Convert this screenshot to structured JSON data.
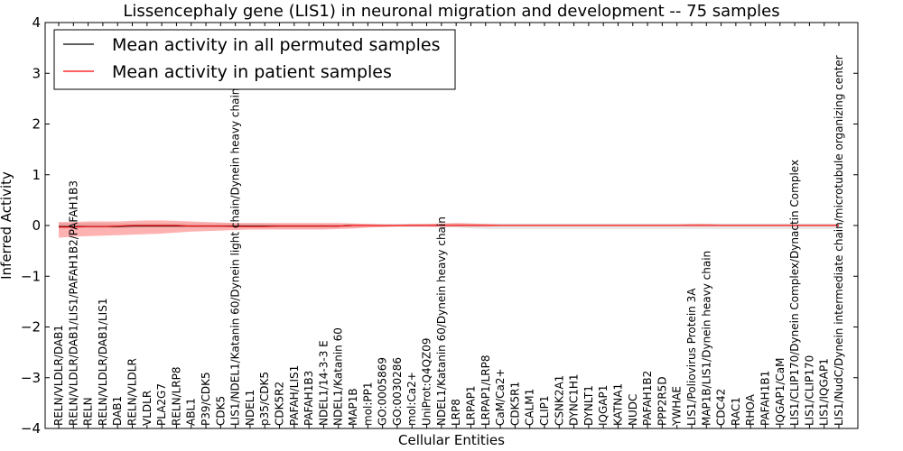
{
  "chart_data": {
    "type": "line",
    "title": "Lissencephaly gene (LIS1) in neuronal migration and development -- 75 samples",
    "xlabel": "Cellular Entities",
    "ylabel": "Inferred Activity",
    "ylim": [
      -4,
      4
    ],
    "yticks": [
      -4,
      -3,
      -2,
      -1,
      0,
      1,
      2,
      3,
      4
    ],
    "ytick_labels": [
      "−4",
      "−3",
      "−2",
      "−1",
      "0",
      "1",
      "2",
      "3",
      "4"
    ],
    "legend_position": "top-left",
    "categories": [
      "RELN/VLDLR/DAB1",
      "RELN/VLDLR/DAB1/LIS1/PAFAH1B2/PAFAH1B3",
      "RELN",
      "RELN/VLDLR/DAB1/LIS1",
      "DAB1",
      "RELN/VLDLR",
      "VLDLR",
      "PLA2G7",
      "RELN/LRP8",
      "ABL1",
      "P39/CDK5",
      "CDK5",
      "LIS1/NDEL1/Katanin 60/Dynein light chain/Dynein heavy chain",
      "NDEL1",
      "p35/CDK5",
      "CDK5R2",
      "PAFAH/LIS1",
      "PAFAH1B3",
      "NDEL1/14-3-3 E",
      "NDEL1/Katanin 60",
      "MAP1B",
      "mol:PP1",
      "GO:0005869",
      "GO:0030286",
      "mol:Ca2+",
      "UniProt:Q4QZ09",
      "NDEL1/Katanin 60/Dynein heavy chain",
      "LRP8",
      "LRPAP1",
      "LRPAP1/LRP8",
      "CaM/Ca2+",
      "CDK5R1",
      "CALM1",
      "CLIP1",
      "CSNK2A1",
      "DYNC1H1",
      "DYNLT1",
      "IQGAP1",
      "KATNA1",
      "NUDC",
      "PAFAH1B2",
      "PPP2R5D",
      "YWHAE",
      "LIS1/Poliovirus Protein 3A",
      "MAP1B/LIS1/Dynein heavy chain",
      "CDC42",
      "RAC1",
      "RHOA",
      "PAFAH1B1",
      "IQGAP1/CaM",
      "LIS1/CLIP170/Dynein Complex/Dynactin Complex",
      "LIS1/CLIP170",
      "LIS1/IQGAP1",
      "LIS1/NudC/Dynein intermediate chain/microtubule organizing center"
    ],
    "series": [
      {
        "name": "Mean activity in all permuted samples",
        "color": "#000000",
        "values": [
          -0.02,
          -0.02,
          -0.02,
          -0.02,
          -0.02,
          -0.01,
          -0.01,
          -0.01,
          -0.01,
          -0.01,
          -0.01,
          -0.01,
          -0.01,
          -0.01,
          -0.01,
          -0.01,
          -0.01,
          -0.01,
          -0.01,
          -0.01,
          0,
          0,
          0,
          0,
          0,
          0,
          0,
          0,
          0,
          0,
          0,
          0,
          0,
          0,
          0,
          0,
          0,
          0,
          0,
          0,
          0,
          0,
          0,
          0,
          0,
          0,
          0,
          0,
          0,
          0,
          0,
          0,
          0,
          0
        ],
        "band_lower": [
          -0.06,
          -0.05,
          -0.05,
          -0.05,
          -0.05,
          -0.05,
          -0.04,
          -0.04,
          -0.04,
          -0.04,
          -0.04,
          -0.04,
          -0.04,
          -0.04,
          -0.04,
          -0.04,
          -0.04,
          -0.04,
          -0.04,
          -0.04,
          -0.03,
          -0.03,
          -0.03,
          -0.03,
          -0.03,
          -0.03,
          -0.04,
          -0.04,
          -0.06,
          -0.07,
          -0.07,
          -0.07,
          -0.07,
          -0.07,
          -0.07,
          -0.07,
          -0.07,
          -0.07,
          -0.07,
          -0.07,
          -0.07,
          -0.07,
          -0.07,
          -0.07,
          -0.07,
          -0.07,
          -0.07,
          -0.07,
          -0.07,
          -0.07,
          -0.07,
          -0.07,
          -0.07,
          -0.07
        ],
        "band_upper": [
          0.05,
          0.05,
          0.05,
          0.05,
          0.04,
          0.04,
          0.04,
          0.04,
          0.04,
          0.04,
          0.04,
          0.04,
          0.04,
          0.04,
          0.04,
          0.03,
          0.03,
          0.03,
          0.03,
          0.03,
          0.03,
          0.03,
          0.03,
          0.03,
          0.03,
          0.03,
          0.04,
          0.04,
          0.04,
          0.04,
          0.04,
          0.04,
          0.04,
          0.04,
          0.04,
          0.04,
          0.04,
          0.04,
          0.04,
          0.04,
          0.04,
          0.04,
          0.04,
          0.04,
          0.04,
          0.04,
          0.04,
          0.04,
          0.04,
          0.04,
          0.04,
          0.04,
          0.04,
          0.04
        ]
      },
      {
        "name": "Mean activity in patient samples",
        "color": "#ff0000",
        "values": [
          -0.03,
          -0.03,
          -0.02,
          -0.02,
          -0.01,
          0,
          0,
          0,
          0,
          -0.01,
          -0.01,
          -0.01,
          -0.02,
          -0.02,
          -0.02,
          -0.01,
          -0.01,
          -0.01,
          -0.01,
          -0.01,
          0,
          0,
          0,
          0,
          0,
          0,
          0,
          0,
          0,
          0,
          0,
          0,
          0,
          0,
          0,
          0,
          0,
          0,
          0,
          0,
          0,
          0,
          0,
          0,
          0,
          0,
          0,
          0,
          0,
          0,
          0,
          0,
          0,
          0
        ],
        "band_lower": [
          -0.24,
          -0.22,
          -0.21,
          -0.2,
          -0.19,
          -0.18,
          -0.17,
          -0.16,
          -0.14,
          -0.12,
          -0.11,
          -0.1,
          -0.09,
          -0.08,
          -0.08,
          -0.08,
          -0.08,
          -0.08,
          -0.08,
          -0.07,
          -0.06,
          -0.04,
          -0.03,
          -0.02,
          -0.02,
          -0.02,
          -0.02,
          -0.02,
          -0.02,
          -0.02,
          -0.01,
          -0.01,
          -0.01,
          -0.01,
          -0.01,
          -0.01,
          -0.01,
          -0.01,
          -0.01,
          -0.01,
          -0.01,
          -0.01,
          -0.01,
          -0.01,
          -0.01,
          -0.01,
          -0.01,
          -0.01,
          -0.01,
          -0.01,
          -0.01,
          -0.01,
          -0.01,
          -0.01
        ],
        "band_upper": [
          0.07,
          0.07,
          0.08,
          0.08,
          0.08,
          0.09,
          0.1,
          0.1,
          0.09,
          0.08,
          0.07,
          0.06,
          0.05,
          0.05,
          0.05,
          0.05,
          0.05,
          0.05,
          0.05,
          0.05,
          0.04,
          0.03,
          0.02,
          0.02,
          0.03,
          0.03,
          0.04,
          0.05,
          0.04,
          0.03,
          0.02,
          0.02,
          0.02,
          0.02,
          0.02,
          0.02,
          0.02,
          0.02,
          0.02,
          0.02,
          0.02,
          0.02,
          0.02,
          0.03,
          0.03,
          0.02,
          0.02,
          0.02,
          0.02,
          0.02,
          0.02,
          0.02,
          0.02,
          0.02
        ]
      }
    ]
  }
}
